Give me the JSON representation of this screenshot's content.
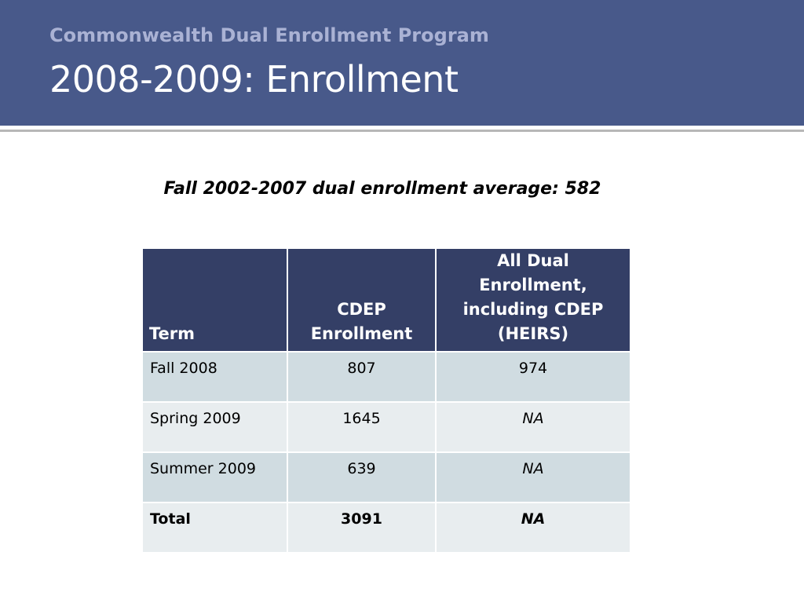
{
  "header": {
    "subtitle": "Commonwealth Dual Enrollment Program",
    "title": "2008-2009: Enrollment"
  },
  "note": "Fall 2002-2007 dual enrollment average: 582",
  "colors": {
    "header_band": "#48598a",
    "subtitle_text": "#aab2d4",
    "table_header": "#343f66",
    "row_shade_dark": "#d0dce1",
    "row_shade_light": "#e8edef"
  },
  "table": {
    "headers": {
      "term": "Term",
      "cdep_line1": "CDEP",
      "cdep_line2": "Enrollment",
      "all_line1": "All Dual Enrollment,",
      "all_line2": "including CDEP",
      "all_line3": "(HEIRS)"
    },
    "rows": [
      {
        "term": "Fall 2008",
        "cdep": "807",
        "all": "974"
      },
      {
        "term": "Spring 2009",
        "cdep": "1645",
        "all": "NA"
      },
      {
        "term": "Summer 2009",
        "cdep": "639",
        "all": "NA"
      },
      {
        "term": "Total",
        "cdep": "3091",
        "all": "NA"
      }
    ]
  }
}
